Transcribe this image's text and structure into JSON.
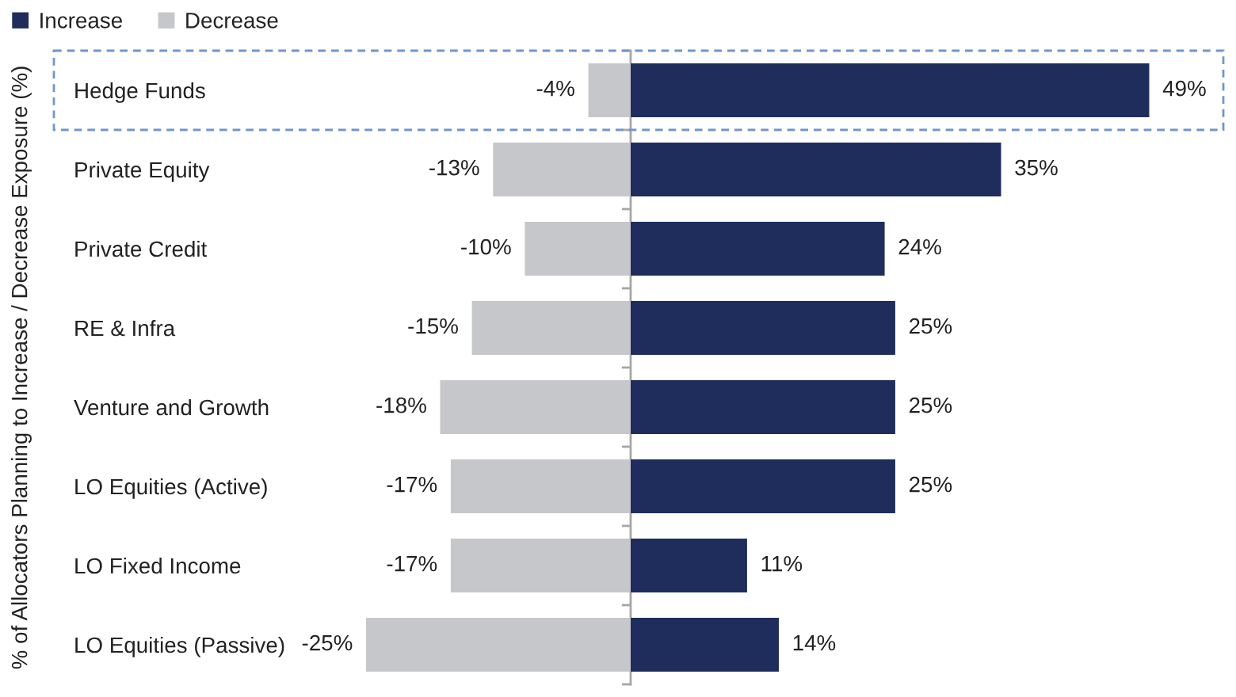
{
  "chart_data": {
    "type": "bar",
    "orientation": "horizontal",
    "stacked": true,
    "ylabel": "% of Allocators Planning to Increase / Decrease Exposure (%)",
    "categories": [
      "Hedge Funds",
      "Private Equity",
      "Private Credit",
      "RE & Infra",
      "Venture and Growth",
      "LO Equities (Active)",
      "LO Fixed Income",
      "LO Equities (Passive)"
    ],
    "series": [
      {
        "name": "Increase",
        "color": "#1f2d5c",
        "values": [
          49,
          35,
          24,
          25,
          25,
          25,
          11,
          14
        ],
        "value_labels": [
          "49%",
          "35%",
          "24%",
          "25%",
          "25%",
          "25%",
          "11%",
          "14%"
        ]
      },
      {
        "name": "Decrease",
        "color": "#c6c7cb",
        "values": [
          -4,
          -13,
          -10,
          -15,
          -18,
          -17,
          -17,
          -25
        ],
        "value_labels": [
          "-4%",
          "-13%",
          "-10%",
          "-15%",
          "-18%",
          "-17%",
          "-17%",
          "-25%"
        ]
      }
    ],
    "xlim": [
      -54.5,
      56
    ],
    "tick_labels": "y",
    "legend": "top left"
  }
}
